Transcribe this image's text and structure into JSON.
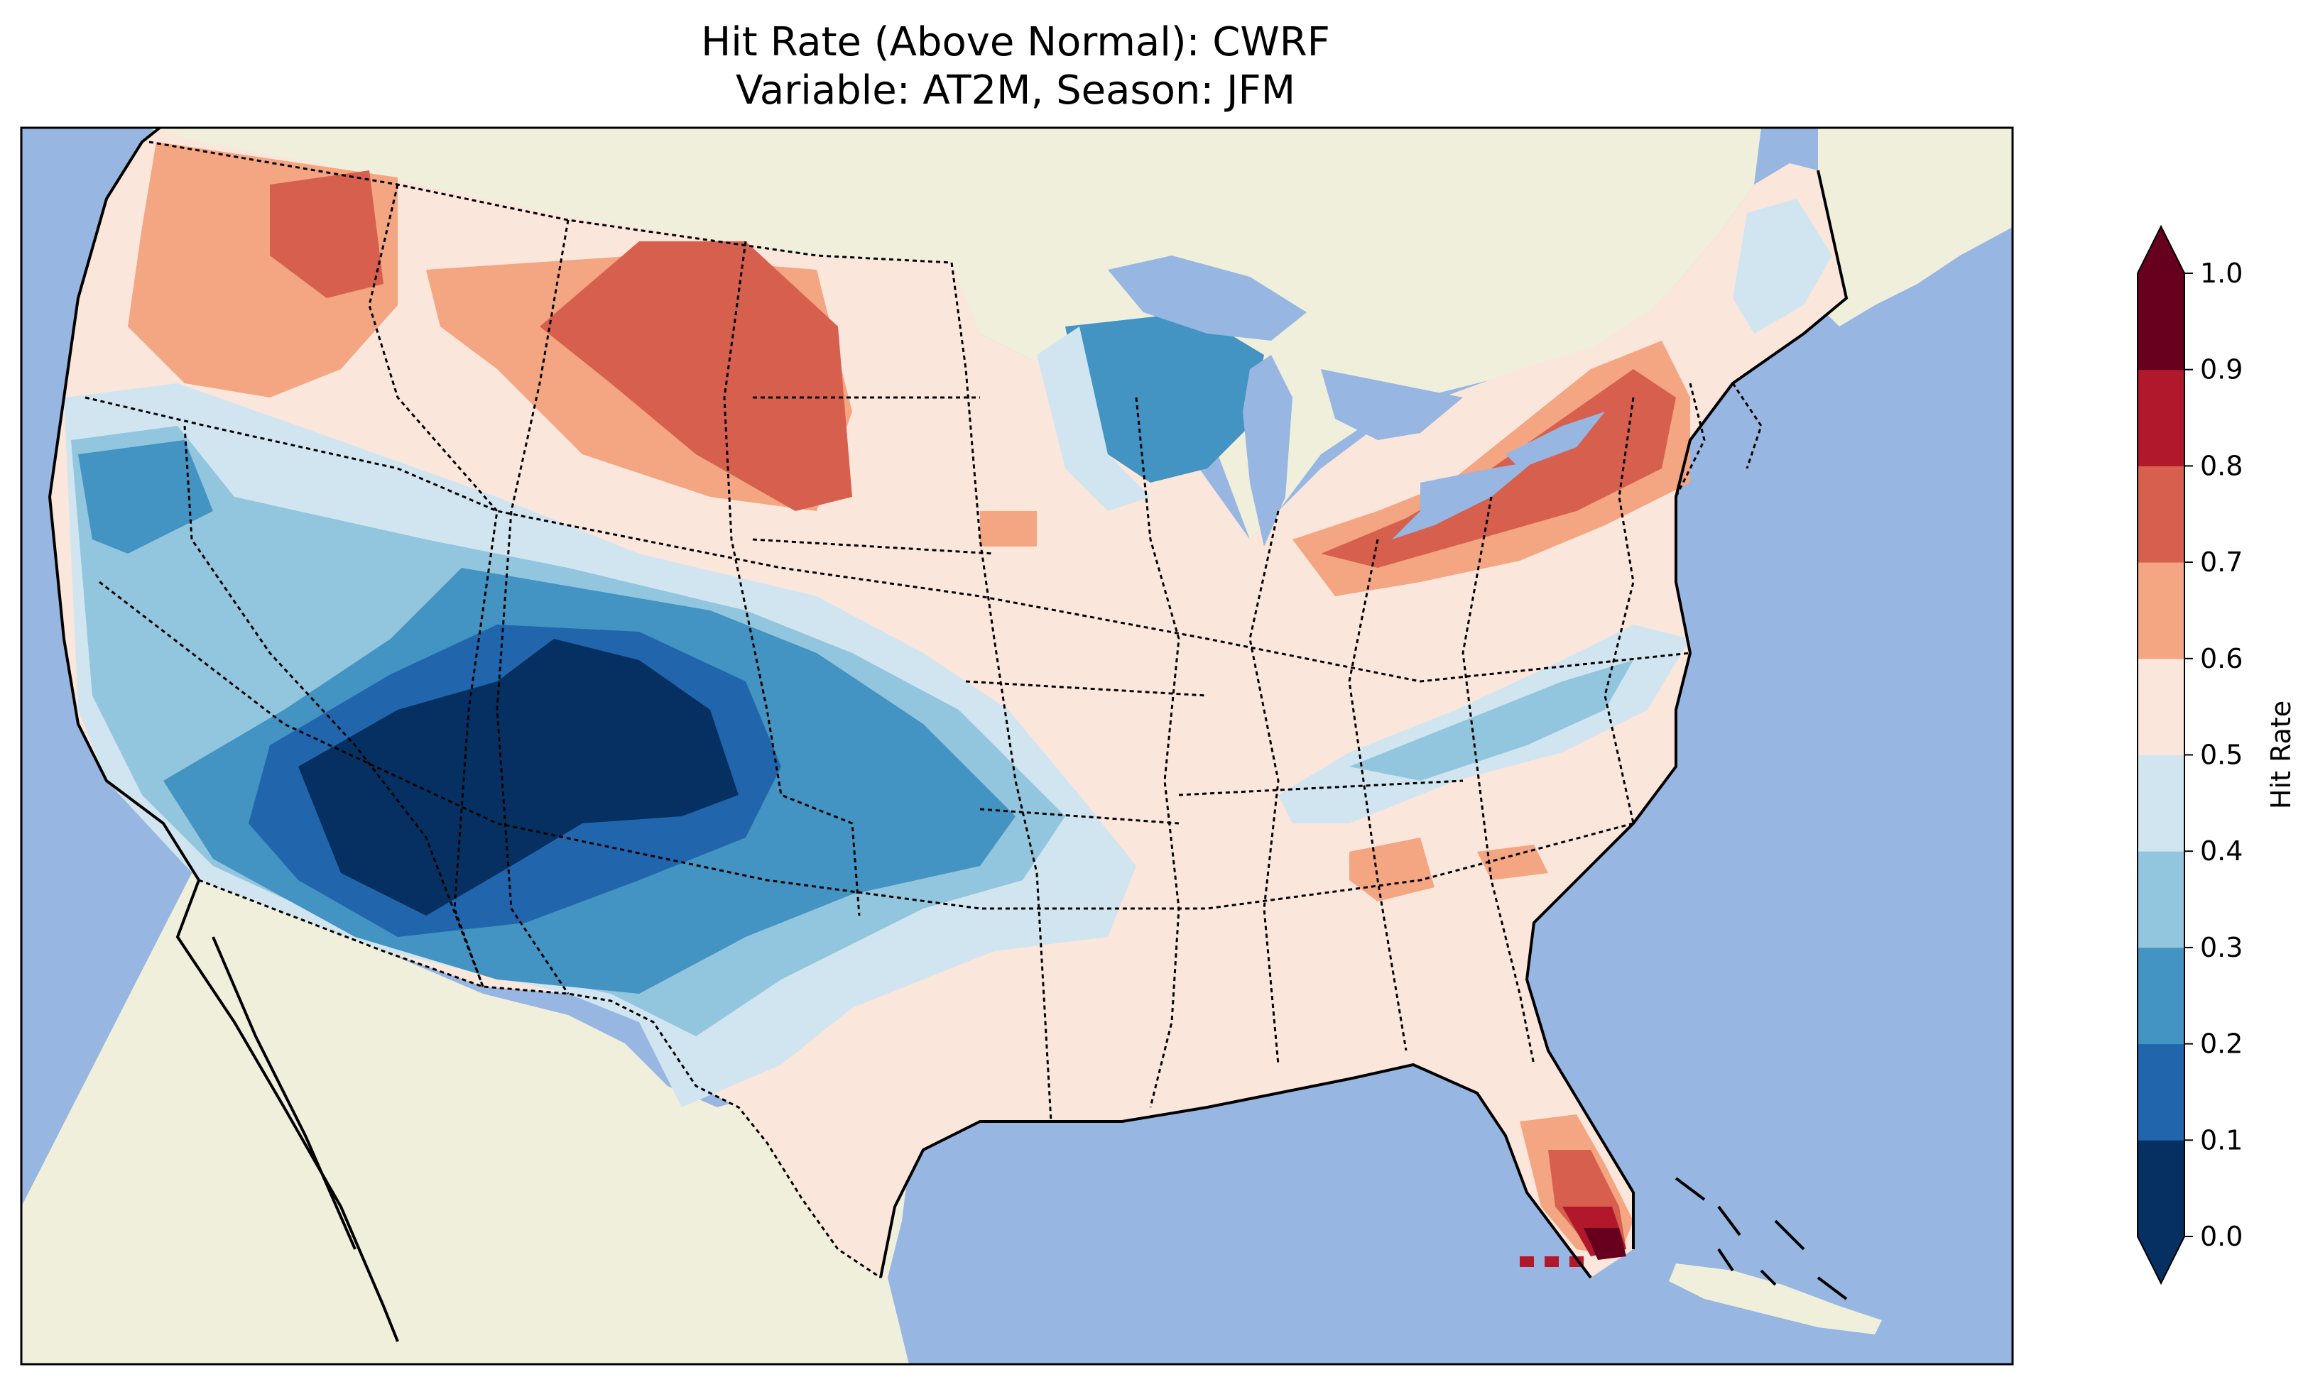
{
  "title": {
    "line1": "Hit Rate (Above Normal): CWRF",
    "line2": "Variable: AT2M, Season: JFM"
  },
  "colors": {
    "ocean": "#97b6e1",
    "land": "#efefdb",
    "border": "#000000"
  },
  "colorbar": {
    "label": "Hit Rate",
    "ticks": [
      "0.0",
      "0.1",
      "0.2",
      "0.3",
      "0.4",
      "0.5",
      "0.6",
      "0.7",
      "0.8",
      "0.9",
      "1.0"
    ],
    "bins": [
      {
        "from": 0.0,
        "to": 0.1,
        "color": "#053061"
      },
      {
        "from": 0.1,
        "to": 0.2,
        "color": "#2166ac"
      },
      {
        "from": 0.2,
        "to": 0.3,
        "color": "#4393c3"
      },
      {
        "from": 0.3,
        "to": 0.4,
        "color": "#92c5de"
      },
      {
        "from": 0.4,
        "to": 0.5,
        "color": "#d1e5f0"
      },
      {
        "from": 0.5,
        "to": 0.6,
        "color": "#fbe6dc"
      },
      {
        "from": 0.6,
        "to": 0.7,
        "color": "#f4a582"
      },
      {
        "from": 0.7,
        "to": 0.8,
        "color": "#d6604d"
      },
      {
        "from": 0.8,
        "to": 0.9,
        "color": "#b2182b"
      },
      {
        "from": 0.9,
        "to": 1.0,
        "color": "#67001f"
      }
    ],
    "extend": "both"
  }
}
